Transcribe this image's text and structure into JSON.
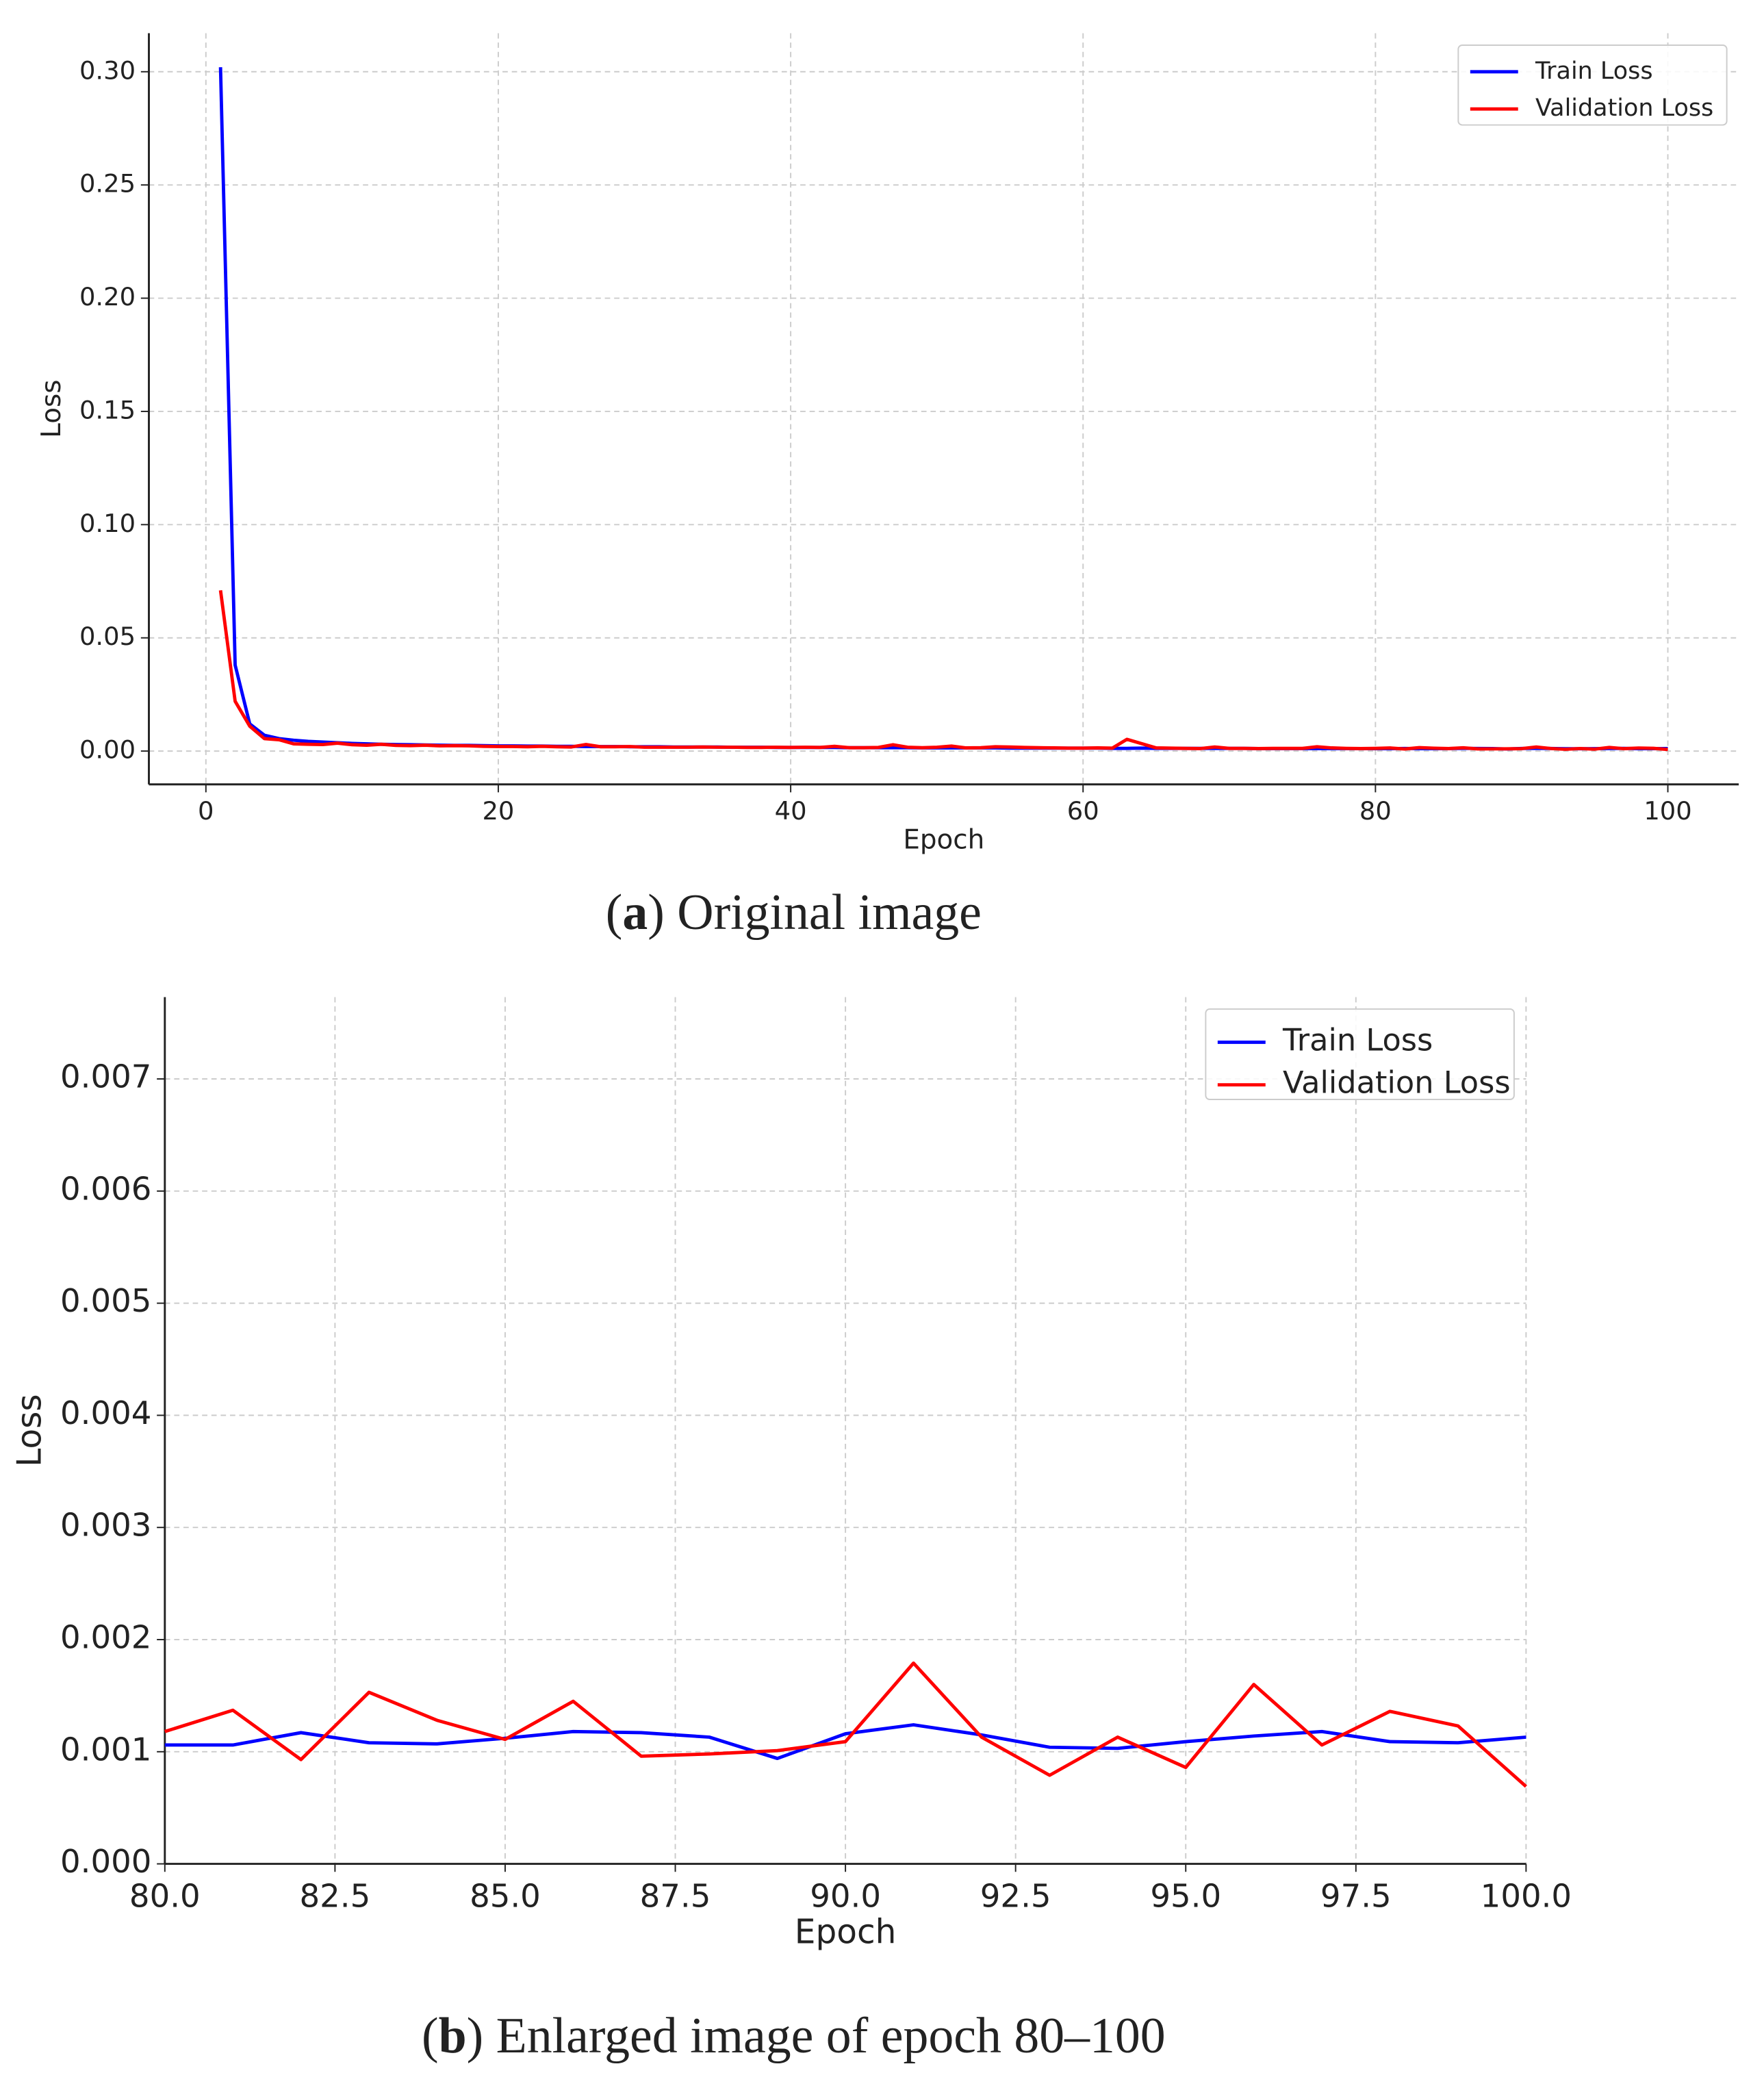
{
  "chart_data": [
    {
      "type": "line",
      "x_label": "Epoch",
      "y_label": "Loss",
      "caption": [
        "(",
        "a",
        ") Original image"
      ],
      "x": [
        1,
        2,
        3,
        4,
        5,
        6,
        7,
        8,
        9,
        10,
        11,
        12,
        13,
        14,
        15,
        16,
        17,
        18,
        19,
        20,
        21,
        22,
        23,
        24,
        25,
        26,
        27,
        28,
        29,
        30,
        31,
        32,
        33,
        34,
        35,
        36,
        37,
        38,
        39,
        40,
        41,
        42,
        43,
        44,
        45,
        46,
        47,
        48,
        49,
        50,
        51,
        52,
        53,
        54,
        55,
        56,
        57,
        58,
        59,
        60,
        61,
        62,
        63,
        64,
        65,
        66,
        67,
        68,
        69,
        70,
        71,
        72,
        73,
        74,
        75,
        76,
        77,
        78,
        79,
        80,
        81,
        82,
        83,
        84,
        85,
        86,
        87,
        88,
        89,
        90,
        91,
        92,
        93,
        94,
        95,
        96,
        97,
        98,
        99,
        100
      ],
      "series": [
        {
          "name": "Train Loss",
          "color": "#0000ff",
          "values": [
            0.302,
            0.038,
            0.012,
            0.007,
            0.0055,
            0.0048,
            0.0043,
            0.004,
            0.0037,
            0.0034,
            0.0032,
            0.003,
            0.0029,
            0.0028,
            0.0027,
            0.0026,
            0.0025,
            0.0025,
            0.0024,
            0.0023,
            0.0023,
            0.0022,
            0.0022,
            0.0021,
            0.0021,
            0.002,
            0.002,
            0.002,
            0.0019,
            0.0019,
            0.0019,
            0.0018,
            0.0018,
            0.0018,
            0.0018,
            0.0017,
            0.0017,
            0.0017,
            0.0016,
            0.0016,
            0.0016,
            0.0016,
            0.0016,
            0.0015,
            0.0015,
            0.0015,
            0.0015,
            0.0015,
            0.0014,
            0.0014,
            0.0014,
            0.0014,
            0.0014,
            0.0014,
            0.0013,
            0.0013,
            0.0013,
            0.0013,
            0.0013,
            0.0013,
            0.0013,
            0.0012,
            0.0012,
            0.0013,
            0.0012,
            0.0012,
            0.0012,
            0.0012,
            0.0012,
            0.0012,
            0.0012,
            0.0011,
            0.0011,
            0.0011,
            0.0011,
            0.0011,
            0.0011,
            0.0011,
            0.0011,
            0.00106,
            0.00106,
            0.00117,
            0.00108,
            0.00107,
            0.00112,
            0.00118,
            0.00117,
            0.00113,
            0.00094,
            0.00116,
            0.00124,
            0.00115,
            0.00104,
            0.00103,
            0.00109,
            0.00114,
            0.00118,
            0.00109,
            0.00108,
            0.00113
          ]
        },
        {
          "name": "Validation Loss",
          "color": "#ff0000",
          "values": [
            0.071,
            0.022,
            0.011,
            0.0055,
            0.005,
            0.0032,
            0.003,
            0.0029,
            0.0035,
            0.0028,
            0.0026,
            0.003,
            0.0025,
            0.0024,
            0.0026,
            0.0023,
            0.0024,
            0.0023,
            0.0021,
            0.002,
            0.002,
            0.0019,
            0.0021,
            0.0019,
            0.0018,
            0.0029,
            0.0019,
            0.0019,
            0.002,
            0.0017,
            0.0017,
            0.0017,
            0.0017,
            0.0018,
            0.0017,
            0.0017,
            0.0016,
            0.0016,
            0.0017,
            0.0016,
            0.0017,
            0.0016,
            0.0021,
            0.0015,
            0.0015,
            0.0016,
            0.0028,
            0.0017,
            0.0015,
            0.0017,
            0.0022,
            0.0014,
            0.0015,
            0.0019,
            0.0018,
            0.0016,
            0.0015,
            0.0014,
            0.0013,
            0.0013,
            0.0014,
            0.0013,
            0.0052,
            0.0033,
            0.0014,
            0.0013,
            0.0012,
            0.0011,
            0.0018,
            0.0012,
            0.0012,
            0.0011,
            0.0012,
            0.0012,
            0.0012,
            0.0019,
            0.0014,
            0.0012,
            0.0011,
            0.00118,
            0.00137,
            0.00093,
            0.00153,
            0.00128,
            0.00111,
            0.00145,
            0.00096,
            0.00098,
            0.00101,
            0.00109,
            0.00179,
            0.00113,
            0.00079,
            0.00113,
            0.00086,
            0.0016,
            0.00106,
            0.00136,
            0.00123,
            0.00069
          ]
        }
      ],
      "xlim": [
        -3.9,
        104.85
      ],
      "xticks": [
        0,
        20,
        40,
        60,
        80,
        100
      ],
      "ylim": [
        -0.0147,
        0.317
      ],
      "yticks": [
        {
          "value": 0,
          "label": "0.00"
        },
        {
          "value": 0.05,
          "label": "0.05"
        },
        {
          "value": 0.1,
          "label": "0.10"
        },
        {
          "value": 0.15,
          "label": "0.15"
        },
        {
          "value": 0.2,
          "label": "0.20"
        },
        {
          "value": 0.25,
          "label": "0.25"
        },
        {
          "value": 0.3,
          "label": "0.30"
        }
      ],
      "grid": true,
      "legend": "upper right"
    },
    {
      "type": "line",
      "x_label": "Epoch",
      "y_label": "Loss",
      "caption": [
        "(",
        "b",
        ") Enlarged image of epoch 80–100"
      ],
      "x": [
        80,
        81,
        82,
        83,
        84,
        85,
        86,
        87,
        88,
        89,
        90,
        91,
        92,
        93,
        94,
        95,
        96,
        97,
        98,
        99,
        100
      ],
      "series": [
        {
          "name": "Train Loss",
          "color": "#0000ff",
          "values": [
            0.00106,
            0.00106,
            0.00117,
            0.00108,
            0.00107,
            0.00112,
            0.00118,
            0.00117,
            0.00113,
            0.00094,
            0.00116,
            0.00124,
            0.00115,
            0.00104,
            0.00103,
            0.00109,
            0.00114,
            0.00118,
            0.00109,
            0.00108,
            0.00113
          ]
        },
        {
          "name": "Validation Loss",
          "color": "#ff0000",
          "values": [
            0.00118,
            0.00137,
            0.00093,
            0.00153,
            0.00128,
            0.00111,
            0.00145,
            0.00096,
            0.00098,
            0.00101,
            0.00109,
            0.00179,
            0.00113,
            0.00079,
            0.00113,
            0.00086,
            0.0016,
            0.00106,
            0.00136,
            0.00123,
            0.00069
          ]
        }
      ],
      "xlim": [
        80,
        100
      ],
      "xticks": [
        {
          "value": 80,
          "label": "80.0"
        },
        {
          "value": 82.5,
          "label": "82.5"
        },
        {
          "value": 85,
          "label": "85.0"
        },
        {
          "value": 87.5,
          "label": "87.5"
        },
        {
          "value": 90,
          "label": "90.0"
        },
        {
          "value": 92.5,
          "label": "92.5"
        },
        {
          "value": 95,
          "label": "95.0"
        },
        {
          "value": 97.5,
          "label": "97.5"
        },
        {
          "value": 100,
          "label": "100.0"
        }
      ],
      "ylim": [
        0,
        0.00773
      ],
      "yticks": [
        {
          "value": 0,
          "label": "0.000"
        },
        {
          "value": 0.001,
          "label": "0.001"
        },
        {
          "value": 0.002,
          "label": "0.002"
        },
        {
          "value": 0.003,
          "label": "0.003"
        },
        {
          "value": 0.004,
          "label": "0.004"
        },
        {
          "value": 0.005,
          "label": "0.005"
        },
        {
          "value": 0.006,
          "label": "0.006"
        },
        {
          "value": 0.007,
          "label": "0.007"
        }
      ],
      "grid": true,
      "legend": "upper right"
    }
  ]
}
